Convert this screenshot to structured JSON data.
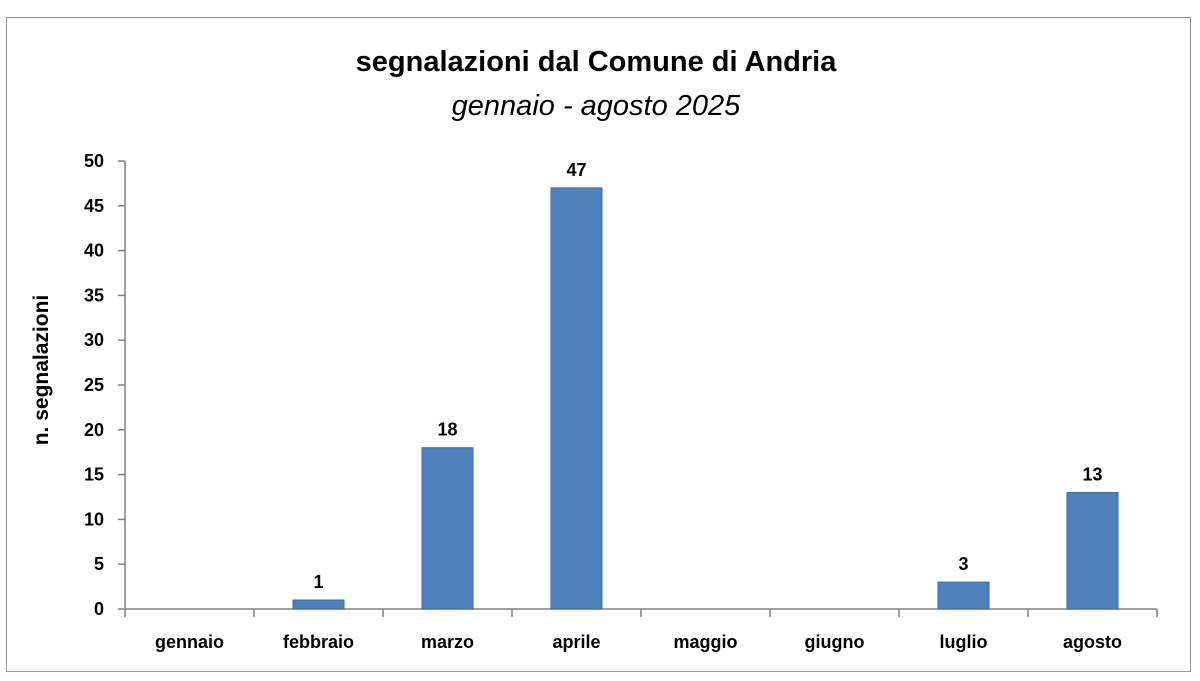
{
  "chart_data": {
    "type": "bar",
    "title": "segnalazioni dal Comune di Andria",
    "subtitle": "gennaio - agosto 2025",
    "xlabel": "",
    "ylabel": "n. segnalazioni",
    "categories": [
      "gennaio",
      "febbraio",
      "marzo",
      "aprile",
      "maggio",
      "giugno",
      "luglio",
      "agosto"
    ],
    "values": [
      0,
      1,
      18,
      47,
      0,
      0,
      3,
      13
    ],
    "data_labels": [
      "",
      "1",
      "18",
      "47",
      "",
      "",
      "3",
      "13"
    ],
    "ylim": [
      0,
      50
    ],
    "yticks": [
      0,
      5,
      10,
      15,
      20,
      25,
      30,
      35,
      40,
      45,
      50
    ],
    "grid": false,
    "legend": "none",
    "bar_color": "#4f81bd"
  }
}
